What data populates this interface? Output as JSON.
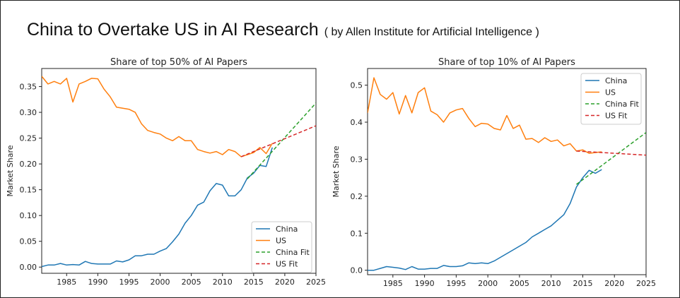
{
  "header": {
    "title": "China to Overtake US in AI Research",
    "source": "( by Allen Institute for Artificial Intelligence )"
  },
  "chart_data": [
    {
      "type": "line",
      "title": "Share of top 50% of AI Papers",
      "xlabel": "",
      "ylabel": "Market Share",
      "xlim": [
        1981,
        2025
      ],
      "ylim": [
        -0.012,
        0.385
      ],
      "xticks": [
        1985,
        1990,
        1995,
        2000,
        2005,
        2010,
        2015,
        2020,
        2025
      ],
      "yticks": [
        0.0,
        0.05,
        0.1,
        0.15,
        0.2,
        0.25,
        0.3,
        0.35
      ],
      "ytick_labels": [
        "0.00",
        "0.05",
        "0.10",
        "0.15",
        "0.20",
        "0.25",
        "0.30",
        "0.35"
      ],
      "legend_position": "lower-right",
      "series": [
        {
          "name": "China",
          "color": "#1f77b4",
          "style": "solid",
          "x": [
            1981,
            1982,
            1983,
            1984,
            1985,
            1986,
            1987,
            1988,
            1989,
            1990,
            1991,
            1992,
            1993,
            1994,
            1995,
            1996,
            1997,
            1998,
            1999,
            2000,
            2001,
            2002,
            2003,
            2004,
            2005,
            2006,
            2007,
            2008,
            2009,
            2010,
            2011,
            2012,
            2013,
            2014,
            2015,
            2016,
            2017,
            2018
          ],
          "y": [
            0.001,
            0.004,
            0.004,
            0.007,
            0.004,
            0.005,
            0.004,
            0.011,
            0.007,
            0.006,
            0.006,
            0.006,
            0.012,
            0.01,
            0.014,
            0.022,
            0.022,
            0.025,
            0.025,
            0.031,
            0.036,
            0.049,
            0.064,
            0.085,
            0.1,
            0.12,
            0.126,
            0.148,
            0.162,
            0.159,
            0.138,
            0.138,
            0.15,
            0.173,
            0.182,
            0.197,
            0.195,
            0.232
          ]
        },
        {
          "name": "US",
          "color": "#ff7f0e",
          "style": "solid",
          "x": [
            1981,
            1982,
            1983,
            1984,
            1985,
            1986,
            1987,
            1988,
            1989,
            1990,
            1991,
            1992,
            1993,
            1994,
            1995,
            1996,
            1997,
            1998,
            1999,
            2000,
            2001,
            2002,
            2003,
            2004,
            2005,
            2006,
            2007,
            2008,
            2009,
            2010,
            2011,
            2012,
            2013,
            2014,
            2015,
            2016,
            2017,
            2018
          ],
          "y": [
            0.37,
            0.355,
            0.36,
            0.355,
            0.366,
            0.32,
            0.355,
            0.36,
            0.366,
            0.365,
            0.345,
            0.33,
            0.31,
            0.308,
            0.306,
            0.3,
            0.278,
            0.265,
            0.261,
            0.258,
            0.25,
            0.245,
            0.253,
            0.245,
            0.245,
            0.228,
            0.224,
            0.221,
            0.224,
            0.218,
            0.228,
            0.224,
            0.214,
            0.218,
            0.222,
            0.232,
            0.22,
            0.24
          ]
        },
        {
          "name": "China Fit",
          "color": "#2ca02c",
          "style": "dashed",
          "x": [
            2014,
            2025
          ],
          "y": [
            0.171,
            0.318
          ]
        },
        {
          "name": "US Fit",
          "color": "#d62728",
          "style": "dashed",
          "x": [
            2013,
            2025
          ],
          "y": [
            0.214,
            0.274
          ]
        }
      ]
    },
    {
      "type": "line",
      "title": "Share of top 10% of AI Papers",
      "xlabel": "",
      "ylabel": "Market Share",
      "xlim": [
        1981,
        2025
      ],
      "ylim": [
        -0.012,
        0.545
      ],
      "xticks": [
        1985,
        1990,
        1995,
        2000,
        2005,
        2010,
        2015,
        2020,
        2025
      ],
      "yticks": [
        0.0,
        0.1,
        0.2,
        0.3,
        0.4,
        0.5
      ],
      "ytick_labels": [
        "0.0",
        "0.1",
        "0.2",
        "0.3",
        "0.4",
        "0.5"
      ],
      "legend_position": "top-right",
      "series": [
        {
          "name": "China",
          "color": "#1f77b4",
          "style": "solid",
          "x": [
            1981,
            1982,
            1983,
            1984,
            1985,
            1986,
            1987,
            1988,
            1989,
            1990,
            1991,
            1992,
            1993,
            1994,
            1995,
            1996,
            1997,
            1998,
            1999,
            2000,
            2001,
            2002,
            2003,
            2004,
            2005,
            2006,
            2007,
            2008,
            2009,
            2010,
            2011,
            2012,
            2013,
            2014,
            2015,
            2016,
            2017,
            2018
          ],
          "y": [
            0.0,
            0.0,
            0.005,
            0.01,
            0.008,
            0.006,
            0.002,
            0.01,
            0.003,
            0.003,
            0.005,
            0.005,
            0.013,
            0.01,
            0.01,
            0.012,
            0.02,
            0.018,
            0.02,
            0.018,
            0.025,
            0.035,
            0.045,
            0.055,
            0.065,
            0.075,
            0.09,
            0.1,
            0.11,
            0.12,
            0.135,
            0.15,
            0.18,
            0.225,
            0.25,
            0.27,
            0.262,
            0.272
          ]
        },
        {
          "name": "US",
          "color": "#ff7f0e",
          "style": "solid",
          "x": [
            1981,
            1982,
            1983,
            1984,
            1985,
            1986,
            1987,
            1988,
            1989,
            1990,
            1991,
            1992,
            1993,
            1994,
            1995,
            1996,
            1997,
            1998,
            1999,
            2000,
            2001,
            2002,
            2003,
            2004,
            2005,
            2006,
            2007,
            2008,
            2009,
            2010,
            2011,
            2012,
            2013,
            2014,
            2015,
            2016,
            2017,
            2018
          ],
          "y": [
            0.425,
            0.52,
            0.475,
            0.462,
            0.48,
            0.422,
            0.472,
            0.425,
            0.48,
            0.493,
            0.43,
            0.42,
            0.4,
            0.425,
            0.433,
            0.437,
            0.41,
            0.388,
            0.397,
            0.395,
            0.383,
            0.379,
            0.418,
            0.383,
            0.392,
            0.354,
            0.356,
            0.345,
            0.358,
            0.348,
            0.352,
            0.336,
            0.342,
            0.322,
            0.325,
            0.316,
            0.318,
            0.32
          ]
        },
        {
          "name": "China Fit",
          "color": "#2ca02c",
          "style": "dashed",
          "x": [
            2014,
            2025
          ],
          "y": [
            0.232,
            0.372
          ]
        },
        {
          "name": "US Fit",
          "color": "#d62728",
          "style": "dashed",
          "x": [
            2014,
            2025
          ],
          "y": [
            0.322,
            0.311
          ]
        }
      ]
    }
  ]
}
